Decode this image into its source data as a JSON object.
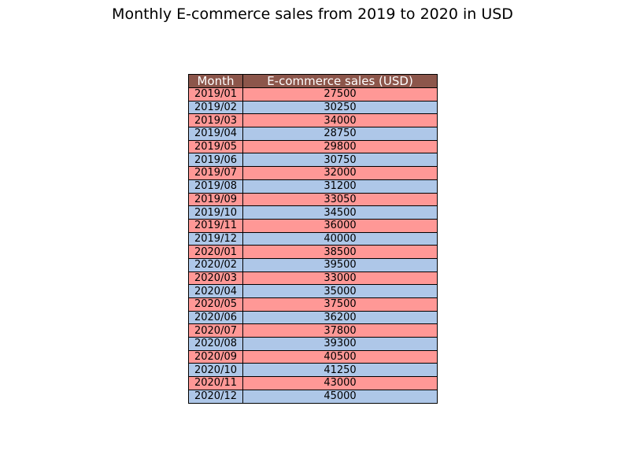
{
  "chart_data": {
    "type": "table",
    "title": "Monthly E-commerce sales from 2019 to 2020 in USD",
    "columns": [
      "Month",
      "E-commerce sales (USD)"
    ],
    "rows": [
      [
        "2019/01",
        "27500"
      ],
      [
        "2019/02",
        "30250"
      ],
      [
        "2019/03",
        "34000"
      ],
      [
        "2019/04",
        "28750"
      ],
      [
        "2019/05",
        "29800"
      ],
      [
        "2019/06",
        "30750"
      ],
      [
        "2019/07",
        "32000"
      ],
      [
        "2019/08",
        "31200"
      ],
      [
        "2019/09",
        "33050"
      ],
      [
        "2019/10",
        "34500"
      ],
      [
        "2019/11",
        "36000"
      ],
      [
        "2019/12",
        "40000"
      ],
      [
        "2020/01",
        "38500"
      ],
      [
        "2020/02",
        "39500"
      ],
      [
        "2020/03",
        "33000"
      ],
      [
        "2020/04",
        "35000"
      ],
      [
        "2020/05",
        "37500"
      ],
      [
        "2020/06",
        "36200"
      ],
      [
        "2020/07",
        "37800"
      ],
      [
        "2020/08",
        "39300"
      ],
      [
        "2020/09",
        "40500"
      ],
      [
        "2020/10",
        "41250"
      ],
      [
        "2020/11",
        "43000"
      ],
      [
        "2020/12",
        "45000"
      ]
    ]
  },
  "colors": {
    "header_bg": "#8c564b",
    "row_odd_bg": "#ff9896",
    "row_even_bg": "#aec7e8"
  }
}
